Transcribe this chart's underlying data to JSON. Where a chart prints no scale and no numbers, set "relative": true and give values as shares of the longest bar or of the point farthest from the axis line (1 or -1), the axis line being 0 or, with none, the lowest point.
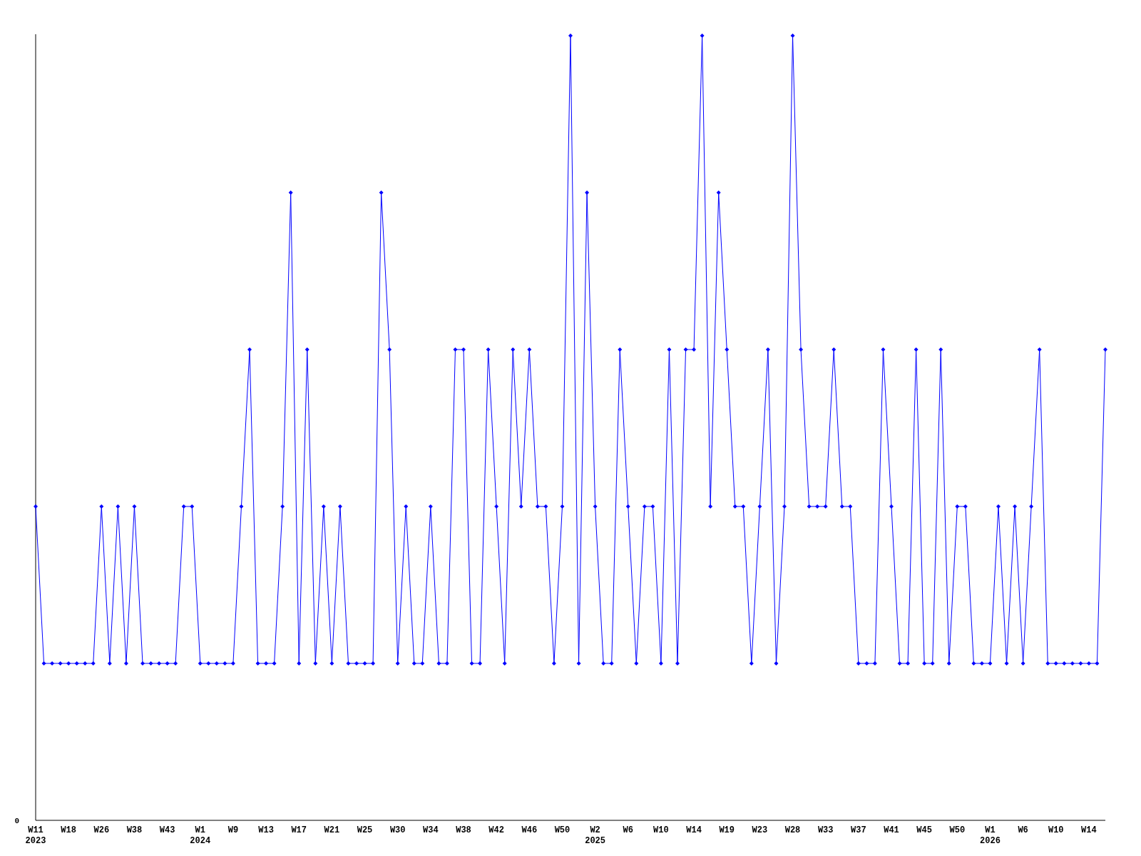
{
  "chart_data": {
    "type": "line",
    "relative": true,
    "marker": "diamond",
    "color": "#0000ff",
    "annotations": [
      "0"
    ],
    "categories": [
      "W11\n2023",
      null,
      null,
      null,
      "W18",
      null,
      null,
      null,
      "W26",
      null,
      null,
      null,
      "W38",
      null,
      null,
      null,
      "W43",
      null,
      null,
      null,
      "W1\n2024",
      null,
      null,
      null,
      "W9",
      null,
      null,
      null,
      "W13",
      null,
      null,
      null,
      "W17",
      null,
      null,
      null,
      "W21",
      null,
      null,
      null,
      "W25",
      null,
      null,
      null,
      "W30",
      null,
      null,
      null,
      "W34",
      null,
      null,
      null,
      "W38",
      null,
      null,
      null,
      "W42",
      null,
      null,
      null,
      "W46",
      null,
      null,
      null,
      "W50",
      null,
      null,
      null,
      "W2\n2025",
      null,
      null,
      null,
      "W6",
      null,
      null,
      null,
      "W10",
      null,
      null,
      null,
      "W14",
      null,
      null,
      null,
      "W19",
      null,
      null,
      null,
      "W23",
      null,
      null,
      null,
      "W28",
      null,
      null,
      null,
      "W33",
      null,
      null,
      null,
      "W37",
      null,
      null,
      null,
      "W41",
      null,
      null,
      null,
      "W45",
      null,
      null,
      null,
      "W50",
      null,
      null,
      null,
      "W1\n2026",
      null,
      null,
      null,
      "W6",
      null,
      null,
      null,
      "W10",
      null,
      null,
      null,
      "W14",
      null,
      null
    ],
    "values": [
      0.4,
      0.2,
      0.2,
      0.2,
      0.2,
      0.2,
      0.2,
      0.2,
      0.4,
      0.2,
      0.4,
      0.2,
      0.4,
      0.2,
      0.2,
      0.2,
      0.2,
      0.2,
      0.4,
      0.4,
      0.2,
      0.2,
      0.2,
      0.2,
      0.2,
      0.4,
      0.6,
      0.2,
      0.2,
      0.2,
      0.4,
      0.8,
      0.2,
      0.6,
      0.2,
      0.4,
      0.2,
      0.4,
      0.2,
      0.2,
      0.2,
      0.2,
      0.8,
      0.6,
      0.2,
      0.4,
      0.2,
      0.2,
      0.4,
      0.2,
      0.2,
      0.6,
      0.6,
      0.2,
      0.2,
      0.6,
      0.4,
      0.2,
      0.6,
      0.4,
      0.6,
      0.4,
      0.4,
      0.2,
      0.4,
      1.0,
      0.2,
      0.8,
      0.4,
      0.2,
      0.2,
      0.6,
      0.4,
      0.2,
      0.4,
      0.4,
      0.2,
      0.6,
      0.2,
      0.6,
      0.6,
      1.0,
      0.4,
      0.8,
      0.6,
      0.4,
      0.4,
      0.2,
      0.4,
      0.6,
      0.2,
      0.4,
      1.0,
      0.6,
      0.4,
      0.4,
      0.4,
      0.6,
      0.4,
      0.4,
      0.2,
      0.2,
      0.2,
      0.6,
      0.4,
      0.2,
      0.2,
      0.6,
      0.2,
      0.2,
      0.6,
      0.2,
      0.4,
      0.4,
      0.2,
      0.2,
      0.2,
      0.4,
      0.2,
      0.4,
      0.2,
      0.4,
      0.6,
      0.2,
      0.2,
      0.2,
      0.2,
      0.2,
      0.2,
      0.2,
      0.6
    ]
  }
}
